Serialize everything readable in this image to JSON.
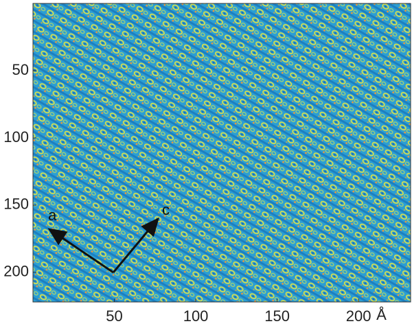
{
  "chart_data": {
    "type": "image",
    "xlim": [
      0,
      232
    ],
    "ylim": [
      0,
      222
    ],
    "y_inverted": true,
    "xticks": [
      50,
      100,
      150,
      200
    ],
    "yticks": [
      50,
      100,
      150,
      200
    ],
    "x_unit": "Å",
    "annotations": [
      "a",
      "c"
    ]
  }
}
